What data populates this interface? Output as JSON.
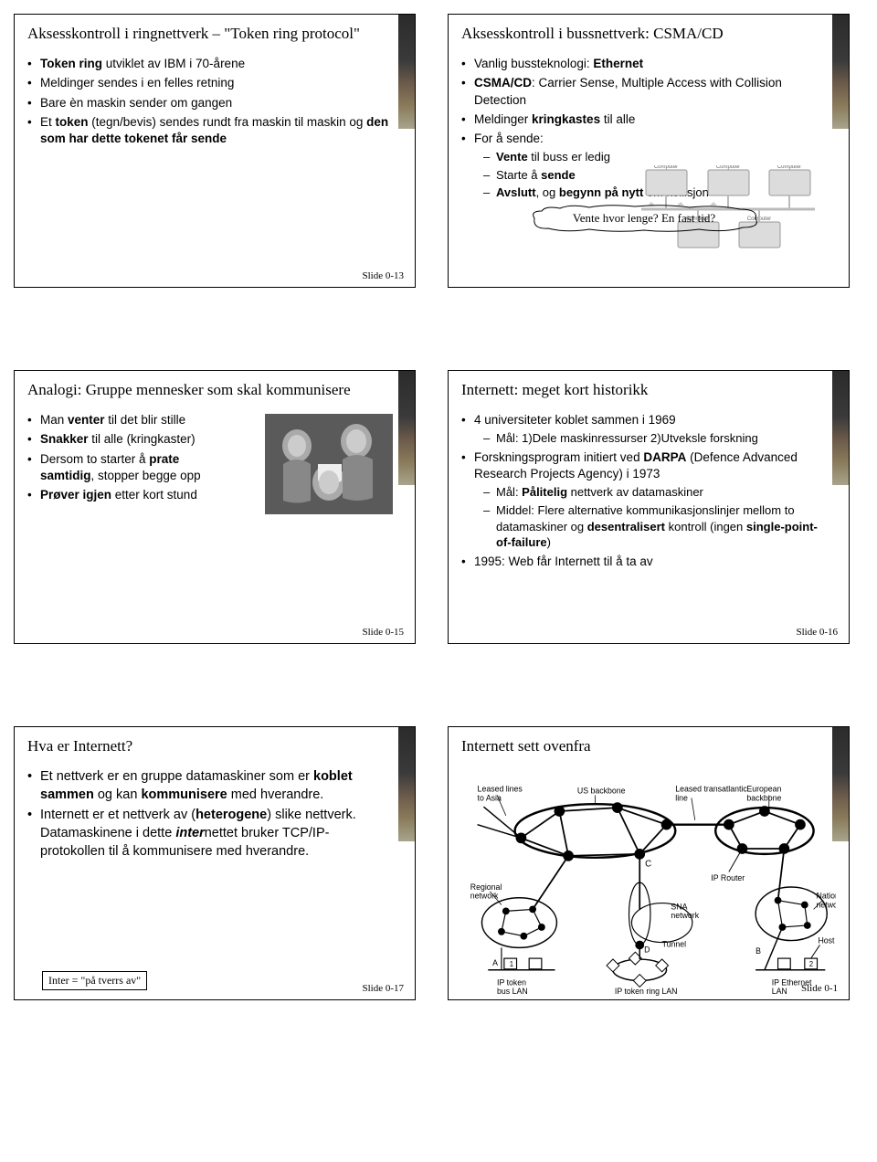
{
  "slides": [
    {
      "title": "Aksesskontroll i ringnettverk – \"Token ring protocol\"",
      "slidenum": "Slide 0-13",
      "bullets": [
        {
          "html": "<b>Token ring</b> utviklet av IBM i 70-årene"
        },
        {
          "html": "Meldinger sendes i en felles retning"
        },
        {
          "html": "Bare èn maskin sender om gangen"
        },
        {
          "html": "Et <b>token</b> (tegn/bevis) sendes rundt fra maskin til maskin og <b>den som har dette tokenet får sende</b>"
        }
      ]
    },
    {
      "title": "Aksesskontroll i bussnettverk: CSMA/CD",
      "slidenum": "",
      "bullets": [
        {
          "html": "Vanlig bussteknologi: <b>Ethernet</b>"
        },
        {
          "html": "<b>CSMA/CD</b>: Carrier Sense, Multiple Access with Collision Detection"
        },
        {
          "html": "Meldinger <b>kringkastes</b> til alle"
        },
        {
          "html": "For å sende:",
          "sub": [
            {
              "html": "<b>Vente</b> til buss er ledig"
            },
            {
              "html": "Starte å <b>sende</b>"
            },
            {
              "html": "<b>Avslutt</b>, og <b>begynn på nytt</b> om kollisjon"
            }
          ]
        }
      ],
      "callout": "Vente hvor lenge? En fast tid?",
      "netlabels": {
        "computer": "Computer"
      }
    },
    {
      "title": "Analogi: Gruppe mennesker som skal kommunisere",
      "slidenum": "Slide 0-15",
      "bullets": [
        {
          "html": "Man <b>venter</b> til det blir stille"
        },
        {
          "html": "<b>Snakker</b> til alle (kringkaster)"
        },
        {
          "html": "Dersom to starter å <b>prate samtidig</b>, stopper begge opp"
        },
        {
          "html": "<b>Prøver igjen</b> etter kort stund"
        }
      ]
    },
    {
      "title": "Internett: meget kort historikk",
      "slidenum": "Slide 0-16",
      "bullets": [
        {
          "html": "4 universiteter koblet sammen i 1969",
          "sub": [
            {
              "html": "Mål: 1)Dele maskinressurser 2)Utveksle forskning"
            }
          ]
        },
        {
          "html": "Forskningsprogram initiert ved <b>DARPA</b> (Defence Advanced Research Projects Agency) i 1973",
          "sub": [
            {
              "html": "Mål: <b>Pålitelig</b> nettverk av datamaskiner"
            },
            {
              "html": "Middel: Flere alternative kommunikasjonslinjer mellom to datamaskiner og <b>desentralisert</b> kontroll (ingen <b>single-point-of-failure</b>)"
            }
          ]
        },
        {
          "html": "1995: Web får Internett til å ta av"
        }
      ]
    },
    {
      "title": "Hva er Internett?",
      "slidenum": "Slide 0-17",
      "bullets": [
        {
          "html": "Et nettverk er en gruppe datamaskiner som er <b>koblet sammen</b> og kan <b>kommunisere</b> med hverandre."
        },
        {
          "html": "Internett er et nettverk av (<b>heterogene</b>) slike nettverk. Datamaskinene i dette <b><i>inter</i></b>nettet bruker TCP/IP-protokollen til å kommunisere med hverandre."
        }
      ],
      "footnote": "Inter = \"på tverrs av\""
    },
    {
      "title": "Internett sett ovenfra",
      "slidenum": "Slide 0-1",
      "diagram": {
        "leased_asia": "Leased lines to Asia",
        "us_backbone": "US backbone",
        "leased_trans": "Leased transatlantic line",
        "euro_backbone": "European backbone",
        "regional": "Regional network",
        "sna": "SNA network",
        "tunnel": "Tunnel",
        "ip_router": "IP Router",
        "national": "National network",
        "host": "Host",
        "a": "A",
        "b": "B",
        "c": "C",
        "d": "D",
        "n1": "1",
        "n2": "2",
        "ip_token_bus": "IP token bus LAN",
        "ip_token_ring": "IP token ring LAN",
        "ip_ethernet": "IP Ethernet LAN"
      }
    }
  ]
}
